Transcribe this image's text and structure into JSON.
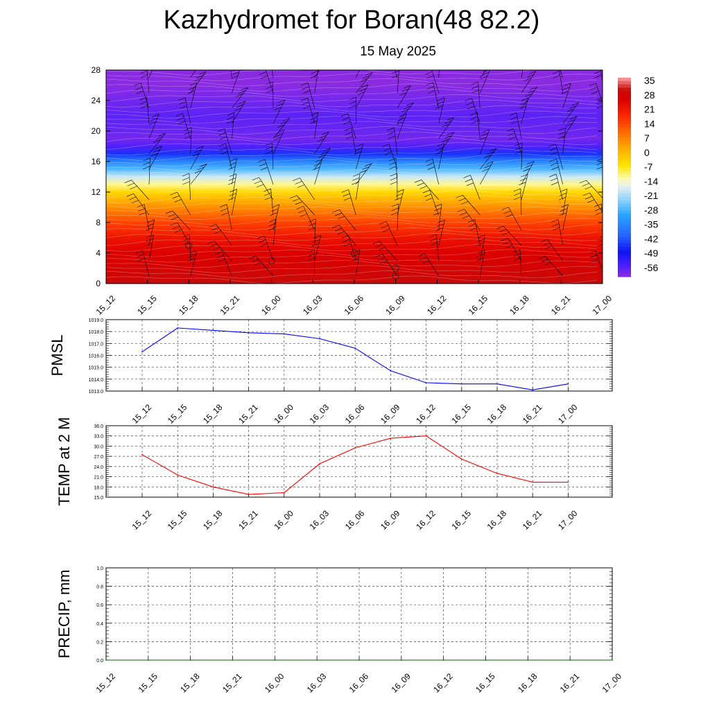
{
  "header": {
    "title": "Kazhydromet for Boran(48 82.2)",
    "subtitle": "15 May 2025"
  },
  "chart_data": [
    {
      "type": "heatmap",
      "name": "vertical-profile",
      "title": "",
      "xlabel": "",
      "ylabel": "",
      "x_tick_labels": [
        "15_12",
        "15_15",
        "15_18",
        "15_21",
        "16_00",
        "16_03",
        "16_06",
        "16_09",
        "16_12",
        "16_15",
        "16_18",
        "16_21",
        "17_00"
      ],
      "y_ticks": [
        0,
        4,
        8,
        12,
        16,
        20,
        24,
        28
      ],
      "ylim": [
        0,
        28
      ],
      "colorbar_labels": [
        "35",
        "28",
        "21",
        "14",
        "7",
        "0",
        "-7",
        "-14",
        "-21",
        "-28",
        "-35",
        "-42",
        "-49",
        "-56"
      ],
      "colorbar_range": [
        -60,
        37
      ],
      "legend_placement": "right",
      "contour_labels": [
        {
          "x": 2,
          "y": 5,
          "text": "5"
        },
        {
          "x": 4,
          "y": 3,
          "text": "3"
        },
        {
          "x": 6,
          "y": 4,
          "text": "3"
        },
        {
          "x": 7,
          "y": 2,
          "text": "2"
        },
        {
          "x": 7,
          "y": 1,
          "text": "1"
        }
      ],
      "temperature_levels": [
        {
          "h": 0,
          "t": 31
        },
        {
          "h": 2,
          "t": 28
        },
        {
          "h": 4,
          "t": 26
        },
        {
          "h": 6,
          "t": 22
        },
        {
          "h": 8,
          "t": 15
        },
        {
          "h": 10,
          "t": 6
        },
        {
          "h": 12,
          "t": -4
        },
        {
          "h": 13,
          "t": -11
        },
        {
          "h": 14,
          "t": -18
        },
        {
          "h": 15,
          "t": -27
        },
        {
          "h": 16,
          "t": -35
        },
        {
          "h": 17,
          "t": -45
        },
        {
          "h": 18,
          "t": -55
        },
        {
          "h": 19,
          "t": -58
        },
        {
          "h": 20,
          "t": -57
        },
        {
          "h": 22,
          "t": -56
        },
        {
          "h": 24,
          "t": -58
        },
        {
          "h": 26,
          "t": -60
        },
        {
          "h": 28,
          "t": -60
        }
      ],
      "colors": {
        "palette": [
          "#8a2be2",
          "#3c1aff",
          "#0a1cff",
          "#2e6bff",
          "#2fa8ff",
          "#9ad8ff",
          "#fff7a8",
          "#ffe000",
          "#ffb000",
          "#ff6a00",
          "#ff2000",
          "#e00000",
          "#c80000",
          "#ff9aa0"
        ]
      }
    },
    {
      "type": "line",
      "name": "pmsl",
      "title": "",
      "xlabel": "",
      "ylabel": "PMSL",
      "categories": [
        "15_12",
        "15_15",
        "15_18",
        "15_21",
        "16_00",
        "16_03",
        "16_06",
        "16_09",
        "16_12",
        "16_15",
        "16_18",
        "16_21",
        "17_00"
      ],
      "y_tick_labels": [
        "1013.0",
        "1014.0",
        "1015.0",
        "1016.0",
        "1017.0",
        "1018.0",
        "1019.0"
      ],
      "ylim": [
        1013,
        1019
      ],
      "grid": true,
      "series": [
        {
          "values": [
            1016.3,
            1018.3,
            1018.1,
            1017.9,
            1017.8,
            1017.4,
            1016.6,
            1014.7,
            1013.7,
            1013.6,
            1013.6,
            1013.1,
            1013.6
          ],
          "color": "#0000ff"
        }
      ]
    },
    {
      "type": "line",
      "name": "temp-2m",
      "title": "",
      "xlabel": "",
      "ylabel": "TEMP at 2 M",
      "categories": [
        "15_12",
        "15_15",
        "15_18",
        "15_21",
        "16_00",
        "16_03",
        "16_06",
        "16_09",
        "16_12",
        "16_15",
        "16_18",
        "16_21",
        "17_00"
      ],
      "y_tick_labels": [
        "15.0",
        "18.0",
        "21.0",
        "24.0",
        "27.0",
        "30.0",
        "33.0",
        "36.0"
      ],
      "ylim": [
        15,
        36
      ],
      "grid": true,
      "series": [
        {
          "values": [
            27.5,
            21.5,
            18.0,
            15.8,
            16.3,
            24.8,
            29.5,
            32.3,
            33.0,
            26.2,
            22.0,
            19.4,
            19.4
          ],
          "color": "#ff0000"
        }
      ]
    },
    {
      "type": "line",
      "name": "precip",
      "title": "",
      "xlabel": "",
      "ylabel": "PRECIP, mm",
      "x_tick_labels": [
        "15_12",
        "15_15",
        "15_18",
        "15_21",
        "16_00",
        "16_03",
        "16_06",
        "16_09",
        "16_12",
        "16_15",
        "16_18",
        "16_21",
        "17_00"
      ],
      "y_tick_labels": [
        "0.0",
        "0.2",
        "0.4",
        "0.6",
        "0.8",
        "1.0"
      ],
      "ylim": [
        0,
        1
      ],
      "grid": true,
      "series": [
        {
          "values": [
            0,
            0,
            0,
            0,
            0,
            0,
            0,
            0,
            0,
            0,
            0,
            0,
            0
          ],
          "color": "#006400"
        }
      ]
    }
  ]
}
